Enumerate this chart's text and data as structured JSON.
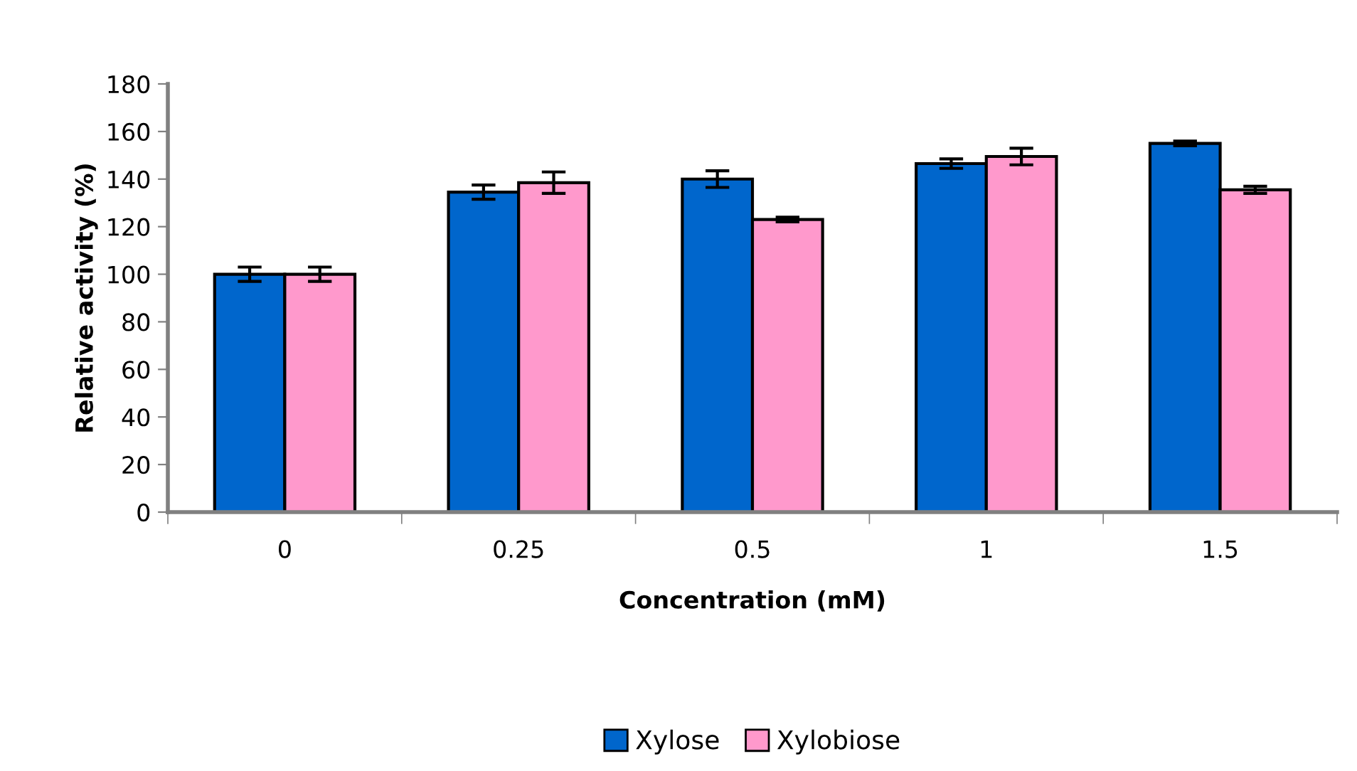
{
  "chart_data": {
    "type": "bar",
    "xlabel": "Concentration (mM)",
    "ylabel": "Relative activity (%)",
    "categories": [
      "0",
      "0.25",
      "0.5",
      "1",
      "1.5"
    ],
    "series": [
      {
        "name": "Xylose",
        "color": "#0066cc",
        "values": [
          100,
          134.5,
          140,
          146.5,
          155
        ],
        "errors": [
          3,
          3,
          3.5,
          2,
          1
        ]
      },
      {
        "name": "Xylobiose",
        "color": "#ff99cc",
        "values": [
          100,
          138.5,
          123,
          149.5,
          135.5
        ],
        "errors": [
          3,
          4.5,
          1,
          3.5,
          1.5
        ]
      }
    ],
    "ylim": [
      0,
      180
    ],
    "yticks": [
      0,
      20,
      40,
      60,
      80,
      100,
      120,
      140,
      160,
      180
    ],
    "grid": false,
    "legend": "bottom"
  }
}
